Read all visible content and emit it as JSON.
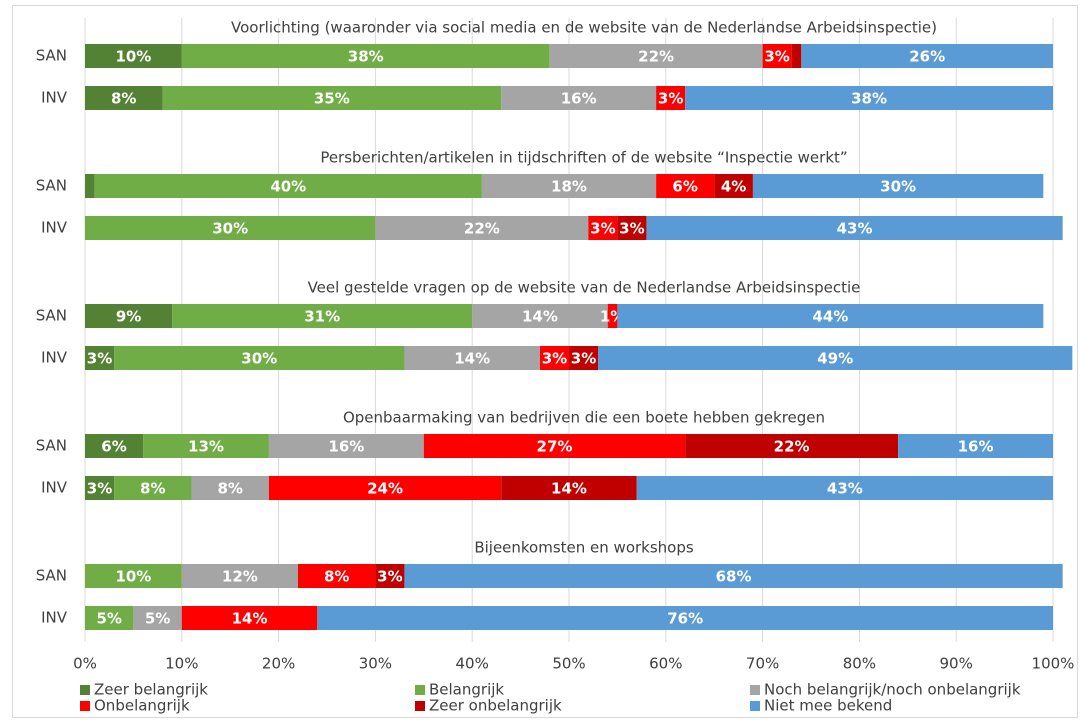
{
  "chart_data": {
    "type": "stacked_barh",
    "group_titles": [
      "Voorlichting (waaronder via social media en de website van de Nederlandse Arbeidsinspectie)",
      "Persberichten/artikelen in tijdschriften of de website “Inspectie werkt”",
      "Veel gestelde vragen op de website van de Nederlandse Arbeidsinspectie",
      "Openbaarmaking van bedrijven die een boete hebben gekregen",
      "Bijeenkomsten en workshops"
    ],
    "categories": [
      "SAN",
      "INV",
      "SAN",
      "INV",
      "SAN",
      "INV",
      "SAN",
      "INV",
      "SAN",
      "INV"
    ],
    "series": [
      {
        "name": "Zeer belangrijk",
        "color": "#548235",
        "values": [
          10,
          8,
          1,
          0,
          9,
          3,
          6,
          3,
          0,
          0
        ],
        "value_labels": [
          "10%",
          "8%",
          null,
          null,
          "9%",
          "3%",
          "6%",
          "3%",
          null,
          null
        ]
      },
      {
        "name": "Belangrijk",
        "color": "#70ad47",
        "values": [
          38,
          35,
          40,
          30,
          31,
          30,
          13,
          8,
          10,
          5
        ],
        "value_labels": [
          "38%",
          "35%",
          "40%",
          "30%",
          "31%",
          "30%",
          "13%",
          "8%",
          "10%",
          "5%"
        ]
      },
      {
        "name": "Noch belangrijk/noch onbelangrijk",
        "color": "#a5a5a5",
        "values": [
          22,
          16,
          18,
          22,
          14,
          14,
          16,
          8,
          12,
          5
        ],
        "value_labels": [
          "22%",
          "16%",
          "18%",
          "22%",
          "14%",
          "14%",
          "16%",
          "8%",
          "12%",
          "5%"
        ]
      },
      {
        "name": "Onbelangrijk",
        "color": "#ff0000",
        "values": [
          3,
          3,
          6,
          3,
          1,
          3,
          27,
          24,
          8,
          14
        ],
        "value_labels": [
          "3%",
          "3%",
          "6%",
          "3%",
          "1%",
          "3%",
          "27%",
          "24%",
          "8%",
          "14%"
        ]
      },
      {
        "name": "Zeer onbelangrijk",
        "color": "#c00000",
        "values": [
          1,
          0,
          4,
          3,
          0,
          3,
          22,
          14,
          3,
          0
        ],
        "value_labels": [
          null,
          null,
          "4%",
          "3%",
          null,
          "3%",
          "22%",
          "14%",
          "3%",
          null
        ]
      },
      {
        "name": "Niet mee bekend",
        "color": "#5b9bd5",
        "values": [
          26,
          38,
          30,
          43,
          44,
          49,
          16,
          43,
          68,
          76
        ],
        "value_labels": [
          "26%",
          "38%",
          "30%",
          "43%",
          "44%",
          "49%",
          "16%",
          "43%",
          "68%",
          "76%"
        ]
      }
    ],
    "xlim": [
      0,
      100
    ],
    "xticks": [
      {
        "value": 0,
        "label": "0%"
      },
      {
        "value": 10,
        "label": "10%"
      },
      {
        "value": 20,
        "label": "20%"
      },
      {
        "value": 30,
        "label": "30%"
      },
      {
        "value": 40,
        "label": "40%"
      },
      {
        "value": 50,
        "label": "50%"
      },
      {
        "value": 60,
        "label": "60%"
      },
      {
        "value": 70,
        "label": "70%"
      },
      {
        "value": 80,
        "label": "80%"
      },
      {
        "value": 90,
        "label": "90%"
      },
      {
        "value": 100,
        "label": "100%"
      }
    ],
    "grid": true
  }
}
